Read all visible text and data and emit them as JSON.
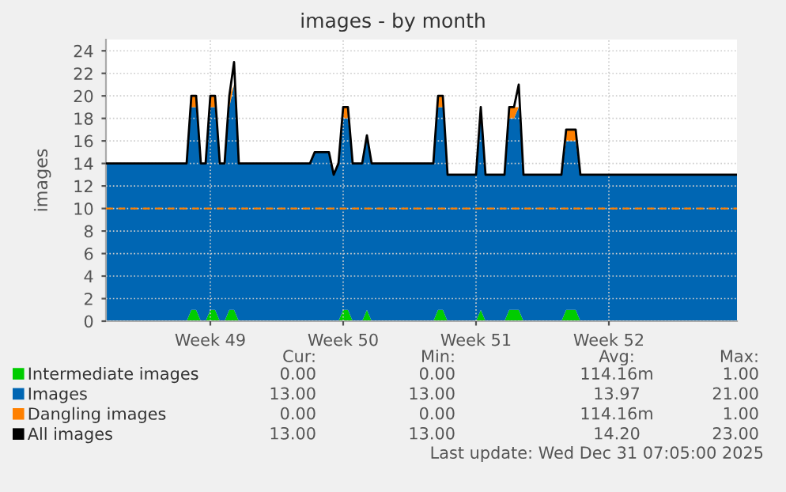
{
  "chart_data": {
    "type": "area",
    "title": "images - by month",
    "ylabel": "images",
    "stacked": true,
    "categories": [
      null,
      null,
      null,
      null,
      null,
      null,
      null,
      null,
      null,
      null,
      null,
      null,
      null,
      null,
      null,
      null,
      null,
      null,
      null,
      null,
      null,
      null,
      "Week 49",
      null,
      null,
      null,
      null,
      null,
      null,
      null,
      null,
      null,
      null,
      null,
      null,
      null,
      null,
      null,
      null,
      null,
      null,
      null,
      null,
      null,
      null,
      null,
      null,
      null,
      null,
      null,
      "Week 50",
      null,
      null,
      null,
      null,
      null,
      null,
      null,
      null,
      null,
      null,
      null,
      null,
      null,
      null,
      null,
      null,
      null,
      null,
      null,
      null,
      null,
      null,
      null,
      null,
      null,
      null,
      null,
      "Week 51",
      null,
      null,
      null,
      null,
      null,
      null,
      null,
      null,
      null,
      null,
      null,
      null,
      null,
      null,
      null,
      null,
      null,
      null,
      null,
      null,
      null,
      null,
      null,
      null,
      null,
      null,
      null,
      "Week 52",
      null,
      null,
      null,
      null,
      null,
      null,
      null,
      null,
      null,
      null,
      null,
      null,
      null,
      null,
      null,
      null,
      null,
      null,
      null,
      null,
      null,
      null,
      null,
      null,
      null,
      null,
      null
    ],
    "series": [
      {
        "name": "Intermediate images",
        "color": "#00cc00",
        "values": [
          0,
          0,
          0,
          0,
          0,
          0,
          0,
          0,
          0,
          0,
          0,
          0,
          0,
          0,
          0,
          0,
          0,
          0,
          1,
          1,
          0,
          0,
          1,
          1,
          0,
          0,
          1,
          1,
          0,
          0,
          0,
          0,
          0,
          0,
          0,
          0,
          0,
          0,
          0,
          0,
          0,
          0,
          0,
          0,
          0,
          0,
          0,
          0,
          0,
          0,
          1,
          1,
          0,
          0,
          0,
          1,
          0,
          0,
          0,
          0,
          0,
          0,
          0,
          0,
          0,
          0,
          0,
          0,
          0,
          0,
          1,
          1,
          0,
          0,
          0,
          0,
          0,
          0,
          0,
          1,
          0,
          0,
          0,
          0,
          0,
          1,
          1,
          1,
          0,
          0,
          0,
          0,
          0,
          0,
          0,
          0,
          0,
          1,
          1,
          1,
          0,
          0,
          0,
          0,
          0,
          0,
          0,
          0,
          0,
          0,
          0,
          0,
          0,
          0,
          0,
          0,
          0,
          0,
          0,
          0,
          0,
          0,
          0,
          0,
          0,
          0,
          0,
          0,
          0,
          0,
          0,
          0,
          0,
          0
        ]
      },
      {
        "name": "Images",
        "color": "#0066b3",
        "values": [
          14,
          14,
          14,
          14,
          14,
          14,
          14,
          14,
          14,
          14,
          14,
          14,
          14,
          14,
          14,
          14,
          14,
          14,
          18,
          18,
          14,
          14,
          18,
          18,
          14,
          14,
          18,
          20,
          14,
          14,
          14,
          14,
          14,
          14,
          14,
          14,
          14,
          14,
          14,
          14,
          14,
          14,
          14,
          14,
          15,
          15,
          15,
          15,
          13,
          14,
          17,
          17,
          14,
          14,
          14,
          15.5,
          14,
          14,
          14,
          14,
          14,
          14,
          14,
          14,
          14,
          14,
          14,
          14,
          14,
          14,
          18,
          18,
          13,
          13,
          13,
          13,
          13,
          13,
          13,
          18,
          13,
          13,
          13,
          13,
          13,
          17,
          17,
          18,
          13,
          13,
          13,
          13,
          13,
          13,
          13,
          13,
          13,
          15,
          15,
          15,
          13,
          13,
          13,
          13,
          13,
          13,
          13,
          13,
          13,
          13,
          13,
          13,
          13,
          13,
          13,
          13,
          13,
          13,
          13,
          13,
          13,
          13,
          13,
          13,
          13,
          13,
          13,
          13,
          13,
          13,
          13,
          13,
          13,
          13
        ]
      },
      {
        "name": "Dangling images",
        "color": "#ff8000",
        "values": [
          0,
          0,
          0,
          0,
          0,
          0,
          0,
          0,
          0,
          0,
          0,
          0,
          0,
          0,
          0,
          0,
          0,
          0,
          1,
          1,
          0,
          0,
          1,
          1,
          0,
          0,
          1,
          0,
          0,
          0,
          0,
          0,
          0,
          0,
          0,
          0,
          0,
          0,
          0,
          0,
          0,
          0,
          0,
          0,
          0,
          0,
          0,
          0,
          0,
          0,
          1,
          1,
          0,
          0,
          0,
          0,
          0,
          0,
          0,
          0,
          0,
          0,
          0,
          0,
          0,
          0,
          0,
          0,
          0,
          0,
          1,
          1,
          0,
          0,
          0,
          0,
          0,
          0,
          0,
          0,
          0,
          0,
          0,
          0,
          0,
          1,
          1,
          0,
          0,
          0,
          0,
          0,
          0,
          0,
          0,
          0,
          0,
          1,
          1,
          1,
          0,
          0,
          0,
          0,
          0,
          0,
          0,
          0,
          0,
          0,
          0,
          0,
          0,
          0,
          0,
          0,
          0,
          0,
          0,
          0,
          0,
          0,
          0,
          0,
          0,
          0,
          0,
          0,
          0,
          0,
          0,
          0,
          0,
          0
        ]
      },
      {
        "name": "All images",
        "color": "#000000",
        "type": "line",
        "values": [
          14,
          14,
          14,
          14,
          14,
          14,
          14,
          14,
          14,
          14,
          14,
          14,
          14,
          14,
          14,
          14,
          14,
          14,
          20,
          20,
          14,
          14,
          20,
          20,
          14,
          14,
          20,
          23,
          14,
          14,
          14,
          14,
          14,
          14,
          14,
          14,
          14,
          14,
          14,
          14,
          14,
          14,
          14,
          14,
          15,
          15,
          15,
          15,
          13,
          14,
          19,
          19,
          14,
          14,
          14,
          16.5,
          14,
          14,
          14,
          14,
          14,
          14,
          14,
          14,
          14,
          14,
          14,
          14,
          14,
          14,
          20,
          20,
          13,
          13,
          13,
          13,
          13,
          13,
          13,
          19,
          13,
          13,
          13,
          13,
          13,
          19,
          19,
          21,
          13,
          13,
          13,
          13,
          13,
          13,
          13,
          13,
          13,
          17,
          17,
          17,
          13,
          13,
          13,
          13,
          13,
          13,
          13,
          13,
          13,
          13,
          13,
          13,
          13,
          13,
          13,
          13,
          13,
          13,
          13,
          13,
          13,
          13,
          13,
          13,
          13,
          13,
          13,
          13,
          13,
          13,
          13,
          13,
          13,
          13
        ]
      }
    ],
    "ylim": [
      0,
      25
    ],
    "yticks": [
      0,
      2,
      4,
      6,
      8,
      10,
      12,
      14,
      16,
      18,
      20,
      22,
      24
    ],
    "grid": true,
    "legend": "bottom left",
    "ref_lines": [
      {
        "axis": "y",
        "value": 10,
        "color": "#ff8000",
        "line_style": "dashed"
      }
    ],
    "annotations": [
      "Cur:",
      "Min:",
      "Avg:",
      "Max:",
      "0.00",
      "0.00",
      "114.16m",
      "1.00",
      "13.00",
      "13.00",
      "13.97",
      "21.00",
      "0.00",
      "0.00",
      "114.16m",
      "1.00",
      "13.00",
      "13.00",
      "14.20",
      "23.00",
      "Last update: Wed Dec 31 07:05:00 2025"
    ]
  }
}
